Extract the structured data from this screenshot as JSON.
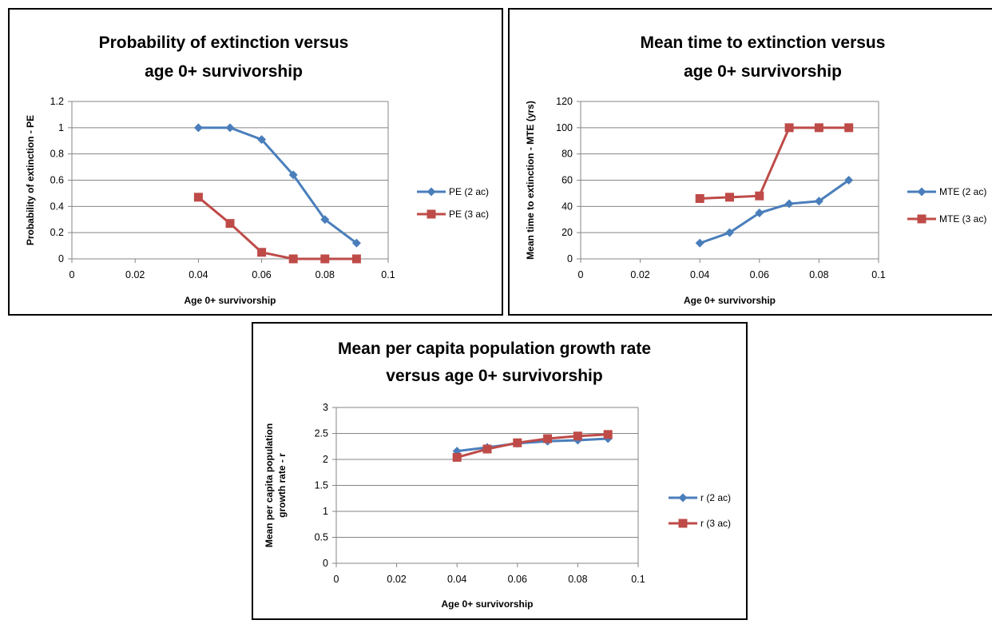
{
  "chart_data": [
    {
      "type": "line",
      "title": "Probability of extinction versus age 0+ survivorship",
      "title_lines": [
        "Probability of extinction versus",
        "age 0+ survivorship"
      ],
      "xlabel": "Age 0+ survivorship",
      "ylabel": "Probability of extinction - PE",
      "ylabel_lines": [
        "Probability of extinction - PE"
      ],
      "xlim": [
        0,
        0.1
      ],
      "ylim": [
        0,
        1.2
      ],
      "xticks": [
        0,
        0.02,
        0.04,
        0.06,
        0.08,
        0.1
      ],
      "yticks": [
        0,
        0.2,
        0.4,
        0.6,
        0.8,
        1,
        1.2
      ],
      "xtick_labels": [
        "0",
        "0.02",
        "0.04",
        "0.06",
        "0.08",
        "0.1"
      ],
      "ytick_labels": [
        "0",
        "0.2",
        "0.4",
        "0.6",
        "0.8",
        "1",
        "1.2"
      ],
      "grid": "horizontal",
      "legend": "right",
      "x": [
        0.04,
        0.05,
        0.06,
        0.07,
        0.08,
        0.09
      ],
      "series": [
        {
          "name": "PE (2 ac)",
          "marker": "diamond",
          "color": "#4a7ebb",
          "values": [
            1.0,
            1.0,
            0.91,
            0.64,
            0.3,
            0.12
          ]
        },
        {
          "name": "PE (3 ac)",
          "marker": "square",
          "color": "#be4b48",
          "values": [
            0.47,
            0.27,
            0.05,
            0.0,
            0.0,
            0.0
          ]
        }
      ]
    },
    {
      "type": "line",
      "title": "Mean time to extinction versus age 0+ survivorship",
      "title_lines": [
        "Mean time to extinction versus",
        "age 0+ survivorship"
      ],
      "xlabel": "Age 0+ survivorship",
      "ylabel": "Mean time to extinction - MTE (yrs)",
      "ylabel_lines": [
        "Mean time to extinction - MTE (yrs)"
      ],
      "xlim": [
        0,
        0.1
      ],
      "ylim": [
        0,
        120
      ],
      "xticks": [
        0,
        0.02,
        0.04,
        0.06,
        0.08,
        0.1
      ],
      "yticks": [
        0,
        20,
        40,
        60,
        80,
        100,
        120
      ],
      "xtick_labels": [
        "0",
        "0.02",
        "0.04",
        "0.06",
        "0.08",
        "0.1"
      ],
      "ytick_labels": [
        "0",
        "20",
        "40",
        "60",
        "80",
        "100",
        "120"
      ],
      "grid": "horizontal",
      "legend": "right",
      "x": [
        0.04,
        0.05,
        0.06,
        0.07,
        0.08,
        0.09
      ],
      "series": [
        {
          "name": "MTE (2 ac)",
          "marker": "diamond",
          "color": "#4a7ebb",
          "values": [
            12,
            20,
            35,
            42,
            44,
            60
          ]
        },
        {
          "name": "MTE (3 ac)",
          "marker": "square",
          "color": "#be4b48",
          "values": [
            46,
            47,
            48,
            100,
            100,
            100
          ]
        }
      ]
    },
    {
      "type": "line",
      "title": "Mean per capita population growth rate versus age 0+ survivorship",
      "title_lines": [
        "Mean per capita population  growth rate",
        "versus age 0+ survivorship"
      ],
      "xlabel": "Age 0+ survivorship",
      "ylabel": "Mean per capita population growth rate - r",
      "ylabel_lines": [
        "Mean per capita population",
        "growth rate - r"
      ],
      "xlim": [
        0,
        0.1
      ],
      "ylim": [
        0,
        3
      ],
      "xticks": [
        0,
        0.02,
        0.04,
        0.06,
        0.08,
        0.1
      ],
      "yticks": [
        0,
        0.5,
        1,
        1.5,
        2,
        2.5,
        3
      ],
      "xtick_labels": [
        "0",
        "0.02",
        "0.04",
        "0.06",
        "0.08",
        "0.1"
      ],
      "ytick_labels": [
        "0",
        "0.5",
        "1",
        "1.5",
        "2",
        "2.5",
        "3"
      ],
      "grid": "horizontal",
      "legend": "right",
      "x": [
        0.04,
        0.05,
        0.06,
        0.07,
        0.08,
        0.09
      ],
      "series": [
        {
          "name": "r (2 ac)",
          "marker": "diamond",
          "color": "#4a7ebb",
          "values": [
            2.16,
            2.23,
            2.31,
            2.35,
            2.37,
            2.4
          ]
        },
        {
          "name": "r (3 ac)",
          "marker": "square",
          "color": "#be4b48",
          "values": [
            2.04,
            2.2,
            2.32,
            2.4,
            2.45,
            2.48
          ]
        }
      ]
    }
  ]
}
